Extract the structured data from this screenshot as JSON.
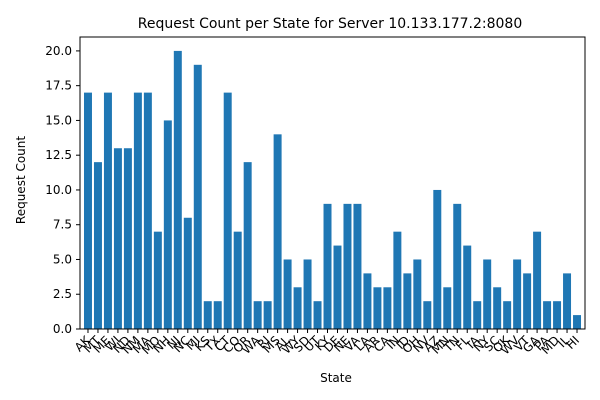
{
  "chart_data": {
    "type": "bar",
    "title": "Request Count per State for Server 10.133.177.2:8080",
    "x_label": "State",
    "y_label": "Request Count",
    "color": "#1f77b4",
    "categories": [
      "AK",
      "MT",
      "ME",
      "WI",
      "ND",
      "NM",
      "MA",
      "MO",
      "NH",
      "NJ",
      "NC",
      "MI",
      "KS",
      "TX",
      "CT",
      "CO",
      "OR",
      "WA",
      "RI",
      "MS",
      "AL",
      "WY",
      "SD",
      "UT",
      "KY",
      "DE",
      "NE",
      "VA",
      "LA",
      "AR",
      "CA",
      "IN",
      "ID",
      "OH",
      "NV",
      "AZ",
      "MN",
      "TN",
      "FL",
      "IA",
      "NY",
      "SC",
      "OK",
      "WV",
      "VT",
      "GA",
      "PA",
      "MD",
      "IL",
      "HI"
    ],
    "values": [
      17,
      12,
      17,
      13,
      13,
      17,
      17,
      7,
      15,
      20,
      8,
      19,
      2,
      2,
      17,
      7,
      12,
      2,
      2,
      14,
      5,
      3,
      5,
      2,
      9,
      6,
      9,
      9,
      4,
      3,
      3,
      7,
      4,
      5,
      2,
      10,
      3,
      9,
      6,
      2,
      5,
      3,
      2,
      5,
      4,
      7,
      2,
      2,
      4,
      1
    ],
    "ylim": [
      0,
      21
    ],
    "yticks": [
      {
        "value": 0,
        "label": "0.0"
      },
      2.5,
      {
        "value": 5,
        "label": "5.0"
      },
      7.5,
      {
        "value": 10,
        "label": "10.0"
      },
      12.5,
      {
        "value": 15,
        "label": "15.0"
      },
      17.5,
      {
        "value": 20,
        "label": "20.0"
      }
    ],
    "grid": false
  }
}
